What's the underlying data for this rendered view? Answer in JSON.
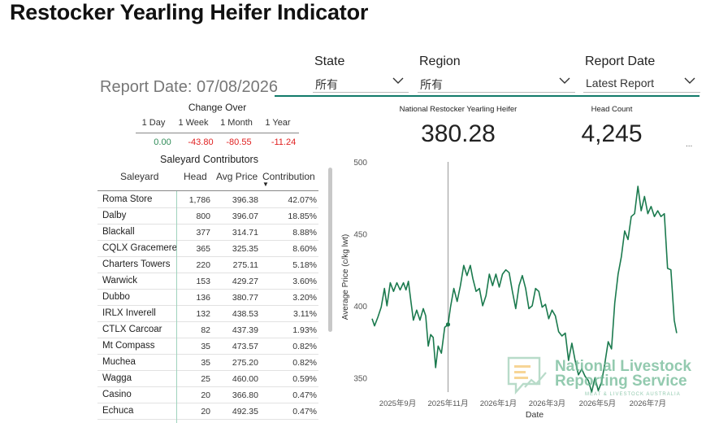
{
  "title": "Restocker Yearling Heifer Indicator",
  "filters": {
    "state": {
      "label": "State",
      "value": "所有"
    },
    "region": {
      "label": "Region",
      "value": "所有"
    },
    "report_date": {
      "label": "Report Date",
      "value": "Latest Report"
    }
  },
  "report_date_text": "Report Date: 07/08/2026",
  "change_over": {
    "title": "Change Over",
    "headers": [
      "1 Day",
      "1 Week",
      "1 Month",
      "1 Year"
    ],
    "values": [
      "0.00",
      "-43.80",
      "-80.55",
      "-11.24"
    ],
    "colors": [
      "#2e8b57",
      "#e02020",
      "#e02020",
      "#e02020"
    ]
  },
  "saleyards": {
    "title": "Saleyard Contributors",
    "headers": {
      "saleyard": "Saleyard",
      "head": "Head",
      "avg_price": "Avg Price",
      "contribution": "Contribution"
    },
    "sort_indicator": "▼",
    "rows": [
      {
        "name": "Roma Store",
        "head": "1,786",
        "avg": "396.38",
        "con": "42.07%"
      },
      {
        "name": "Dalby",
        "head": "800",
        "avg": "396.07",
        "con": "18.85%"
      },
      {
        "name": "Blackall",
        "head": "377",
        "avg": "314.71",
        "con": "8.88%"
      },
      {
        "name": "CQLX Gracemere",
        "head": "365",
        "avg": "325.35",
        "con": "8.60%"
      },
      {
        "name": "Charters Towers",
        "head": "220",
        "avg": "275.11",
        "con": "5.18%"
      },
      {
        "name": "Warwick",
        "head": "153",
        "avg": "429.27",
        "con": "3.60%"
      },
      {
        "name": "Dubbo",
        "head": "136",
        "avg": "380.77",
        "con": "3.20%"
      },
      {
        "name": "IRLX Inverell",
        "head": "132",
        "avg": "438.53",
        "con": "3.11%"
      },
      {
        "name": "CTLX Carcoar",
        "head": "82",
        "avg": "437.39",
        "con": "1.93%"
      },
      {
        "name": "Mt Compass",
        "head": "35",
        "avg": "473.57",
        "con": "0.82%"
      },
      {
        "name": "Muchea",
        "head": "35",
        "avg": "275.20",
        "con": "0.82%"
      },
      {
        "name": "Wagga",
        "head": "25",
        "avg": "460.00",
        "con": "0.59%"
      },
      {
        "name": "Casino",
        "head": "20",
        "avg": "366.80",
        "con": "0.47%"
      },
      {
        "name": "Echuca",
        "head": "20",
        "avg": "492.35",
        "con": "0.47%"
      }
    ]
  },
  "kpi": {
    "national_title": "National Restocker Yearling Heifer",
    "national_value": "380.28",
    "headcount_title": "Head Count",
    "headcount_value": "4,245",
    "more": "..."
  },
  "watermark": {
    "line1": "National Livestock",
    "line2": "Reporting Service",
    "line3": "MEAT & LIVESTOCK AUSTRALIA"
  },
  "colors": {
    "accent": "#117a6a",
    "line": "#1b7a4e",
    "negative": "#e02020",
    "positive": "#2e8b57"
  },
  "chart_data": {
    "type": "line",
    "xlabel": "Date",
    "ylabel": "Average Price (c/kg lwt)",
    "ylim": [
      340,
      500
    ],
    "yticks": [
      350,
      400,
      450,
      500
    ],
    "xlim": [
      "2025-08-01",
      "2026-08-10"
    ],
    "xticks": [
      {
        "date": "2025-09-01",
        "label": "2025年9月"
      },
      {
        "date": "2025-11-01",
        "label": "2025年11月"
      },
      {
        "date": "2026-01-01",
        "label": "2026年1月"
      },
      {
        "date": "2026-03-01",
        "label": "2026年3月"
      },
      {
        "date": "2026-05-01",
        "label": "2026年5月"
      },
      {
        "date": "2026-07-01",
        "label": "2026年7月"
      }
    ],
    "reference_line": "2025-11-01",
    "highlight_point": {
      "date": "2025-11-01",
      "value": 387
    },
    "series": [
      {
        "points": [
          [
            "2025-08-01",
            391
          ],
          [
            "2025-08-04",
            386
          ],
          [
            "2025-08-08",
            392
          ],
          [
            "2025-08-12",
            399
          ],
          [
            "2025-08-16",
            412
          ],
          [
            "2025-08-19",
            400
          ],
          [
            "2025-08-23",
            416
          ],
          [
            "2025-08-27",
            410
          ],
          [
            "2025-08-31",
            416
          ],
          [
            "2025-09-04",
            411
          ],
          [
            "2025-09-08",
            416
          ],
          [
            "2025-09-11",
            411
          ],
          [
            "2025-09-14",
            417
          ],
          [
            "2025-09-17",
            403
          ],
          [
            "2025-09-20",
            390
          ],
          [
            "2025-09-24",
            397
          ],
          [
            "2025-09-28",
            390
          ],
          [
            "2025-10-02",
            398
          ],
          [
            "2025-10-05",
            393
          ],
          [
            "2025-10-08",
            372
          ],
          [
            "2025-10-11",
            380
          ],
          [
            "2025-10-14",
            378
          ],
          [
            "2025-10-17",
            357
          ],
          [
            "2025-10-20",
            372
          ],
          [
            "2025-10-24",
            367
          ],
          [
            "2025-10-28",
            385
          ],
          [
            "2025-11-01",
            387
          ],
          [
            "2025-11-04",
            399
          ],
          [
            "2025-11-08",
            412
          ],
          [
            "2025-11-12",
            403
          ],
          [
            "2025-11-16",
            414
          ],
          [
            "2025-11-20",
            428
          ],
          [
            "2025-11-24",
            421
          ],
          [
            "2025-11-28",
            428
          ],
          [
            "2025-12-01",
            419
          ],
          [
            "2025-12-05",
            410
          ],
          [
            "2025-12-09",
            412
          ],
          [
            "2025-12-13",
            400
          ],
          [
            "2025-12-17",
            407
          ],
          [
            "2025-12-21",
            422
          ],
          [
            "2025-12-25",
            414
          ],
          [
            "2025-12-29",
            422
          ],
          [
            "2026-01-02",
            413
          ],
          [
            "2026-01-06",
            422
          ],
          [
            "2026-01-10",
            425
          ],
          [
            "2026-01-14",
            423
          ],
          [
            "2026-01-18",
            410
          ],
          [
            "2026-01-22",
            398
          ],
          [
            "2026-01-26",
            414
          ],
          [
            "2026-01-30",
            421
          ],
          [
            "2026-02-03",
            412
          ],
          [
            "2026-02-07",
            398
          ],
          [
            "2026-02-11",
            400
          ],
          [
            "2026-02-15",
            412
          ],
          [
            "2026-02-19",
            410
          ],
          [
            "2026-02-23",
            399
          ],
          [
            "2026-02-27",
            401
          ],
          [
            "2026-03-03",
            391
          ],
          [
            "2026-03-07",
            397
          ],
          [
            "2026-03-11",
            393
          ],
          [
            "2026-03-15",
            382
          ],
          [
            "2026-03-19",
            379
          ],
          [
            "2026-03-23",
            381
          ],
          [
            "2026-03-27",
            362
          ],
          [
            "2026-03-31",
            374
          ],
          [
            "2026-04-04",
            362
          ],
          [
            "2026-04-08",
            352
          ],
          [
            "2026-04-12",
            356
          ],
          [
            "2026-04-16",
            351
          ],
          [
            "2026-04-20",
            348
          ],
          [
            "2026-04-24",
            340
          ],
          [
            "2026-04-28",
            350
          ],
          [
            "2026-05-02",
            341
          ],
          [
            "2026-05-06",
            347
          ],
          [
            "2026-05-10",
            360
          ],
          [
            "2026-05-14",
            375
          ],
          [
            "2026-05-18",
            370
          ],
          [
            "2026-05-22",
            402
          ],
          [
            "2026-05-26",
            422
          ],
          [
            "2026-05-30",
            434
          ],
          [
            "2026-06-03",
            452
          ],
          [
            "2026-06-07",
            446
          ],
          [
            "2026-06-11",
            462
          ],
          [
            "2026-06-15",
            464
          ],
          [
            "2026-06-19",
            483
          ],
          [
            "2026-06-23",
            466
          ],
          [
            "2026-06-27",
            476
          ],
          [
            "2026-07-01",
            464
          ],
          [
            "2026-07-05",
            469
          ],
          [
            "2026-07-09",
            462
          ],
          [
            "2026-07-13",
            466
          ],
          [
            "2026-07-17",
            462
          ],
          [
            "2026-07-21",
            464
          ],
          [
            "2026-07-25",
            426
          ],
          [
            "2026-07-29",
            425
          ],
          [
            "2026-08-02",
            390
          ],
          [
            "2026-08-05",
            381
          ]
        ]
      }
    ]
  }
}
